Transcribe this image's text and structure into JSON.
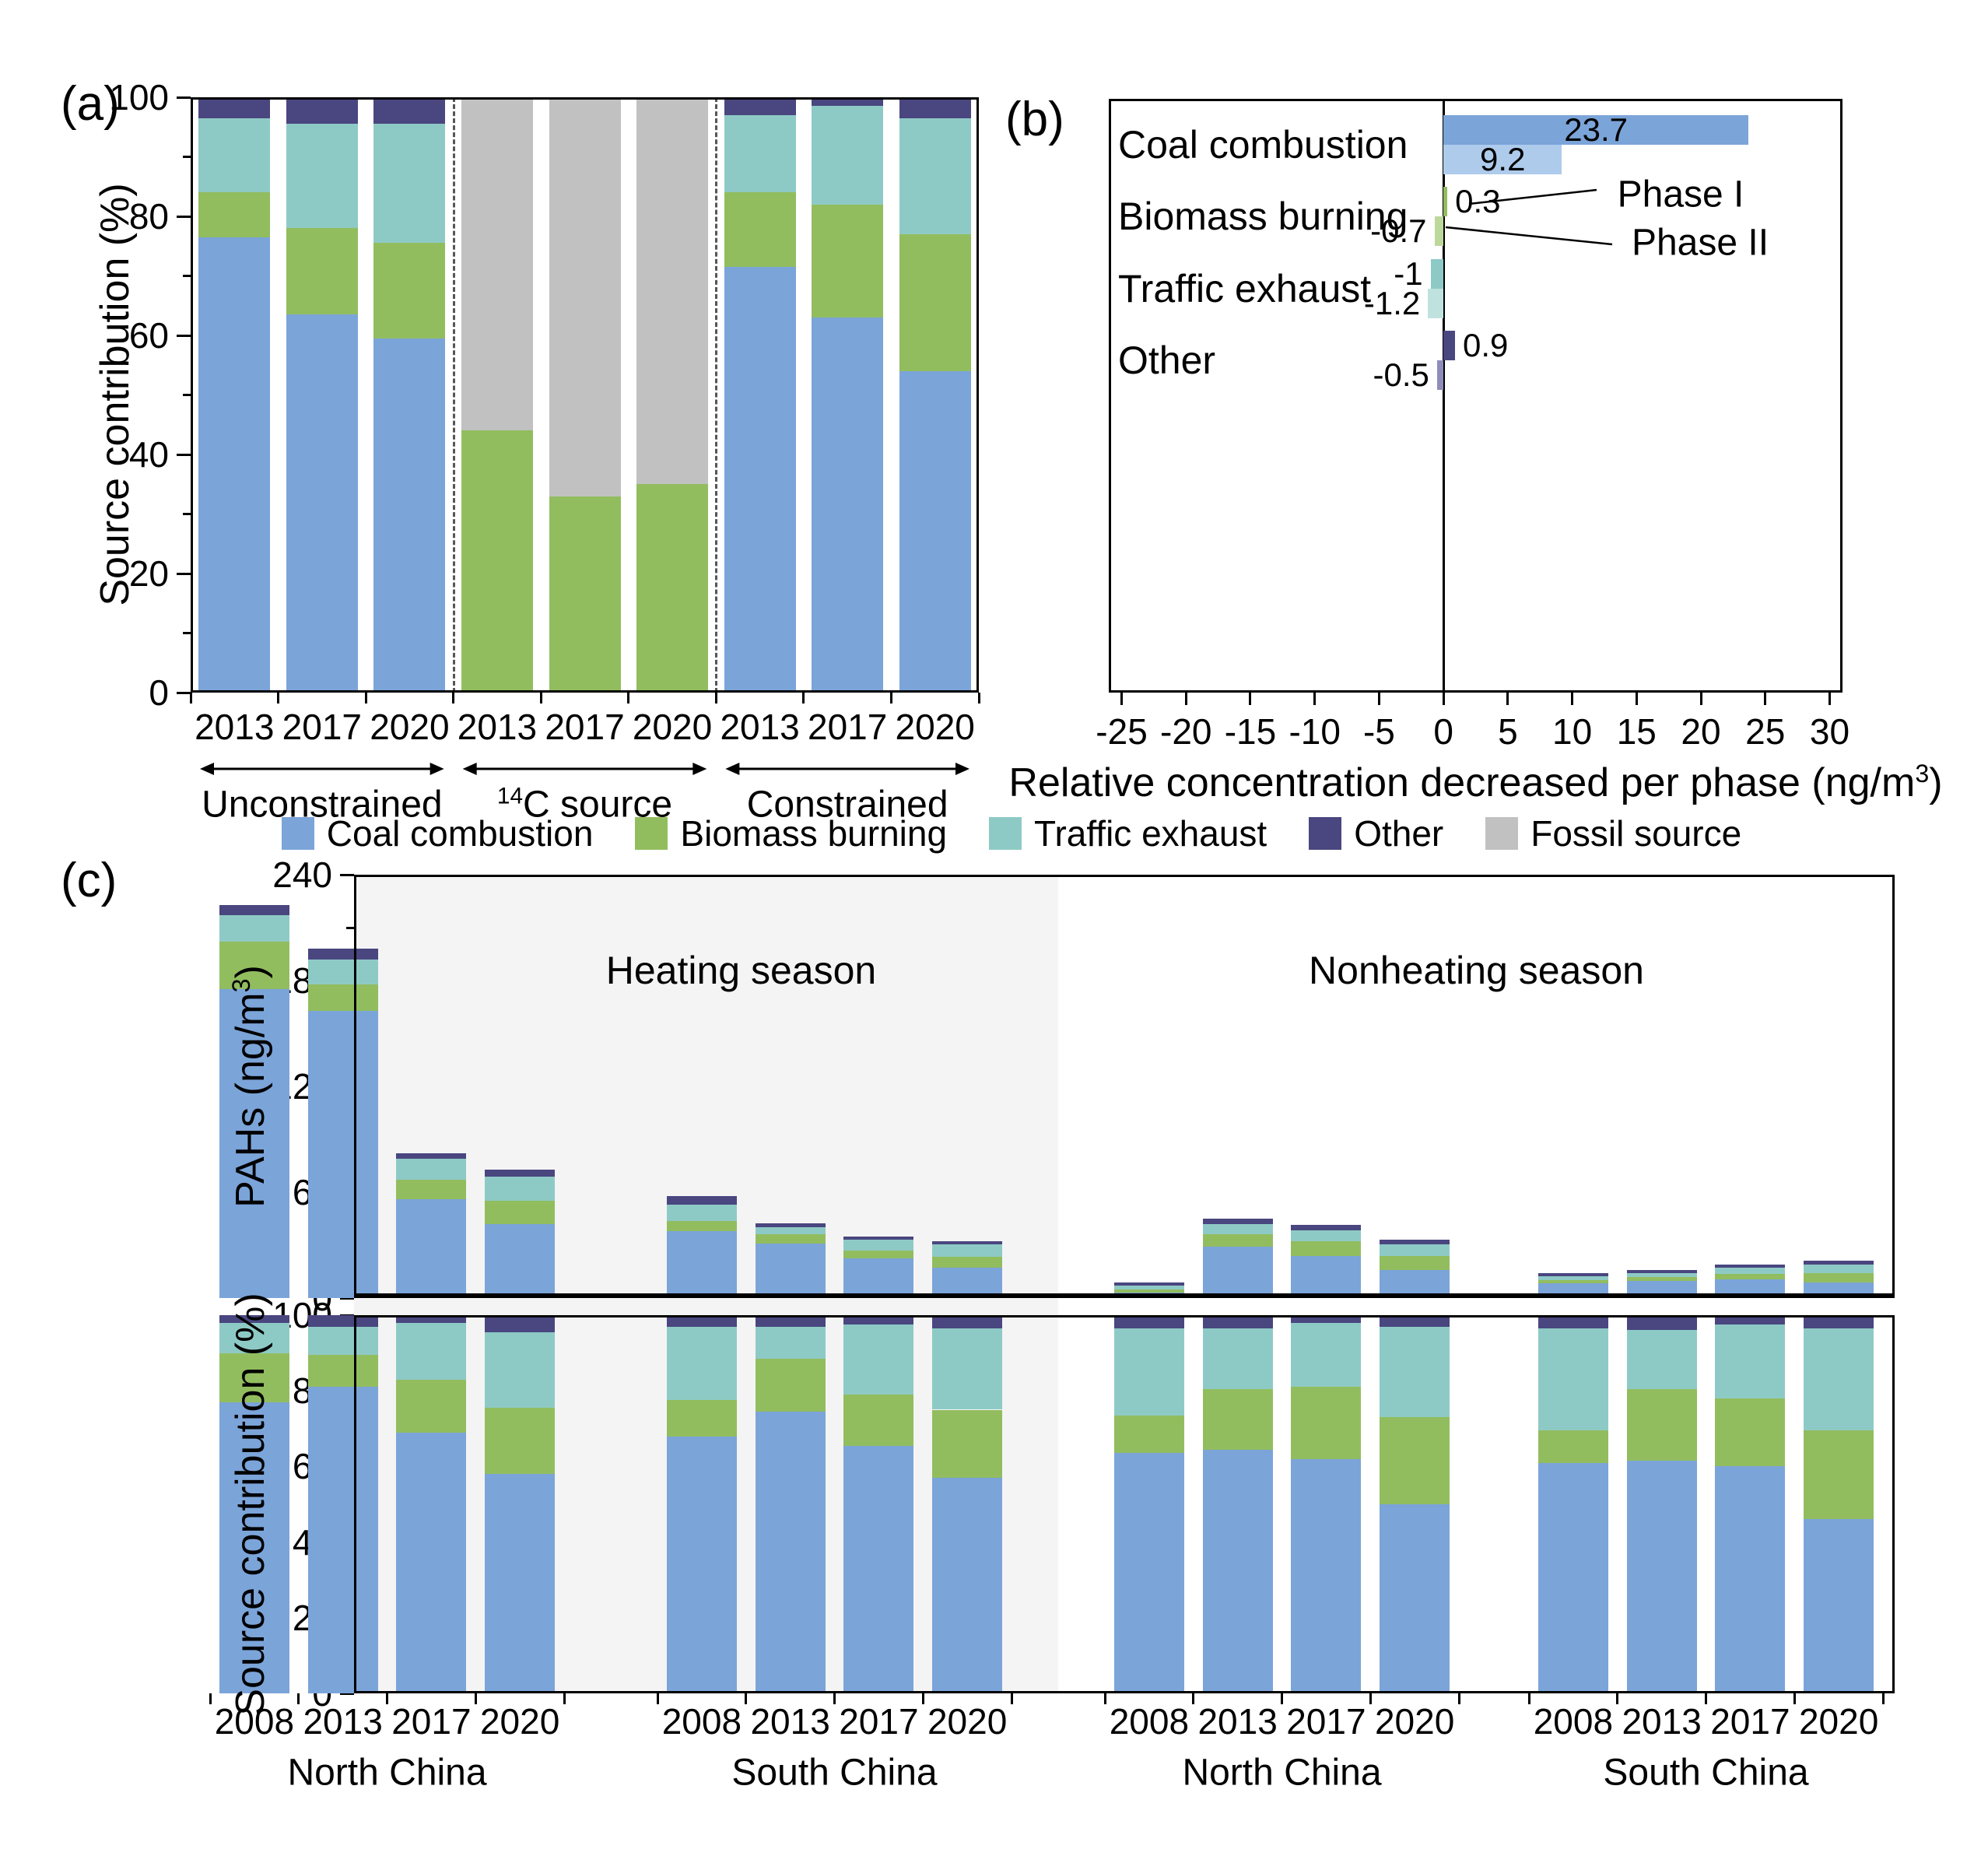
{
  "colors": {
    "coal": "#7BA4D9",
    "biomass": "#92BD5F",
    "traffic": "#8ECAC5",
    "other": "#494680",
    "fossil": "#C1C1C1",
    "coal_light": "#AECBEC",
    "biomass_light": "#BCD89B",
    "traffic_light": "#BFE2DF",
    "other_light": "#8F8CBB",
    "heating_shade": "#F4F4F4",
    "axis": "#000000"
  },
  "legend": {
    "items": [
      {
        "label": "Coal combustion",
        "color_key": "coal"
      },
      {
        "label": "Biomass burning",
        "color_key": "biomass"
      },
      {
        "label": "Traffic exhaust",
        "color_key": "traffic"
      },
      {
        "label": "Other",
        "color_key": "other"
      },
      {
        "label": "Fossil source",
        "color_key": "fossil"
      }
    ]
  },
  "chart_data": [
    {
      "id": "panel_a",
      "type": "bar",
      "stacked": true,
      "panel_label": "(a)",
      "ylabel": "Source contribution (%)",
      "ylim": [
        0,
        100
      ],
      "yticks": [
        0,
        20,
        40,
        60,
        80,
        100
      ],
      "series_keys": [
        "coal",
        "biomass",
        "traffic",
        "other",
        "fossil"
      ],
      "groups": [
        {
          "label_sup": "",
          "label": "Unconstrained",
          "categories": [
            "2013",
            "2017",
            "2020"
          ],
          "values": [
            {
              "coal": 76.5,
              "biomass": 7.5,
              "traffic": 12.5,
              "other": 3.5
            },
            {
              "coal": 63.5,
              "biomass": 14.5,
              "traffic": 17.5,
              "other": 4.5
            },
            {
              "coal": 59.5,
              "biomass": 16,
              "traffic": 20,
              "other": 4.5
            }
          ]
        },
        {
          "label_sup": "14",
          "label": "C source",
          "categories": [
            "2013",
            "2017",
            "2020"
          ],
          "values": [
            {
              "biomass": 44,
              "fossil": 56
            },
            {
              "biomass": 33,
              "fossil": 67
            },
            {
              "biomass": 35,
              "fossil": 65
            }
          ]
        },
        {
          "label_sup": "",
          "label": "Constrained",
          "categories": [
            "2013",
            "2017",
            "2020"
          ],
          "values": [
            {
              "coal": 71.5,
              "biomass": 12.5,
              "traffic": 13,
              "other": 3
            },
            {
              "coal": 63,
              "biomass": 19,
              "traffic": 16.5,
              "other": 1.5
            },
            {
              "coal": 54,
              "biomass": 23,
              "traffic": 19.5,
              "other": 3.5
            }
          ]
        }
      ]
    },
    {
      "id": "panel_b",
      "type": "bar_horizontal",
      "panel_label": "(b)",
      "xlabel_parts": [
        "Relative concentration decreased per phase (ng/m",
        "3",
        ")"
      ],
      "xlim": [
        -26,
        31
      ],
      "xticks": [
        -25,
        -20,
        -15,
        -10,
        -5,
        0,
        5,
        10,
        15,
        20,
        25,
        30
      ],
      "categories": [
        "Coal combustion",
        "Biomass burning",
        "Traffic exhaust",
        "Other"
      ],
      "category_color_keys": [
        "coal",
        "biomass",
        "traffic",
        "other"
      ],
      "series": [
        {
          "name": "Phase I",
          "values": [
            23.7,
            0.3,
            -1,
            0.9
          ],
          "labels": [
            "23.7",
            "0.3",
            "-1",
            "0.9"
          ]
        },
        {
          "name": "Phase II",
          "values": [
            9.2,
            -0.7,
            -1.2,
            -0.5
          ],
          "labels": [
            "9.2",
            "-0.7",
            "-1.2",
            "-0.5"
          ]
        }
      ],
      "annotations": [
        {
          "text": "Phase I"
        },
        {
          "text": "Phase II"
        }
      ]
    },
    {
      "id": "panel_c_top",
      "type": "bar",
      "stacked": true,
      "panel_label": "(c)",
      "ylabel_parts": [
        "PAHs (ng/m",
        "3",
        ")"
      ],
      "ylim": [
        0,
        240
      ],
      "yticks": [
        0,
        60,
        120,
        180,
        240
      ],
      "season_labels": [
        "Heating season",
        "Nonheating season"
      ],
      "series_keys": [
        "coal",
        "biomass",
        "traffic",
        "other"
      ],
      "groups": [
        {
          "region": "North China",
          "season": "Heating season",
          "categories": [
            "2008",
            "2013",
            "2017",
            "2020"
          ],
          "values": [
            {
              "coal": 175,
              "biomass": 27,
              "traffic": 15,
              "other": 6
            },
            {
              "coal": 163,
              "biomass": 15,
              "traffic": 14,
              "other": 6
            },
            {
              "coal": 56,
              "biomass": 11,
              "traffic": 12,
              "other": 3
            },
            {
              "coal": 42,
              "biomass": 13,
              "traffic": 14,
              "other": 4
            }
          ]
        },
        {
          "region": "South China",
          "season": "Heating season",
          "categories": [
            "2008",
            "2013",
            "2017",
            "2020"
          ],
          "values": [
            {
              "coal": 38,
              "biomass": 5.5,
              "traffic": 9.5,
              "other": 5
            },
            {
              "coal": 31,
              "biomass": 5,
              "traffic": 4,
              "other": 2.5
            },
            {
              "coal": 22.5,
              "biomass": 4.5,
              "traffic": 6,
              "other": 2
            },
            {
              "coal": 17,
              "biomass": 6.5,
              "traffic": 7,
              "other": 1.5
            }
          ]
        },
        {
          "region": "North China",
          "season": "Nonheating season",
          "categories": [
            "2008",
            "2013",
            "2017",
            "2020"
          ],
          "values": [
            {
              "coal": 3,
              "biomass": 2,
              "traffic": 2,
              "other": 2
            },
            {
              "coal": 29,
              "biomass": 7,
              "traffic": 6,
              "other": 3
            },
            {
              "coal": 24,
              "biomass": 8,
              "traffic": 6.5,
              "other": 3
            },
            {
              "coal": 16,
              "biomass": 8,
              "traffic": 6.5,
              "other": 2.5
            }
          ]
        },
        {
          "region": "South China",
          "season": "Nonheating season",
          "categories": [
            "2008",
            "2013",
            "2017",
            "2020"
          ],
          "values": [
            {
              "coal": 8.5,
              "biomass": 1.5,
              "traffic": 2.5,
              "other": 1.5
            },
            {
              "coal": 9.5,
              "biomass": 2.5,
              "traffic": 2,
              "other": 2
            },
            {
              "coal": 10.5,
              "biomass": 3,
              "traffic": 3.5,
              "other": 2
            },
            {
              "coal": 9,
              "biomass": 5,
              "traffic": 5,
              "other": 2
            }
          ]
        }
      ]
    },
    {
      "id": "panel_c_bottom",
      "type": "bar",
      "stacked": true,
      "ylabel": "Source contribution (%)",
      "ylim": [
        0,
        100
      ],
      "yticks": [
        0,
        20,
        40,
        60,
        80,
        100
      ],
      "series_keys": [
        "coal",
        "biomass",
        "traffic",
        "other"
      ],
      "groups": [
        {
          "region": "North China",
          "season": "Heating season",
          "categories": [
            "2008",
            "2013",
            "2017",
            "2020"
          ],
          "values": [
            {
              "coal": 77,
              "biomass": 13,
              "traffic": 8,
              "other": 2
            },
            {
              "coal": 81,
              "biomass": 8.5,
              "traffic": 7.5,
              "other": 3
            },
            {
              "coal": 69,
              "biomass": 14,
              "traffic": 15,
              "other": 2
            },
            {
              "coal": 58,
              "biomass": 17.5,
              "traffic": 20,
              "other": 4.5
            }
          ]
        },
        {
          "region": "South China",
          "season": "Heating season",
          "categories": [
            "2008",
            "2013",
            "2017",
            "2020"
          ],
          "values": [
            {
              "coal": 68,
              "biomass": 9.5,
              "traffic": 19.5,
              "other": 3
            },
            {
              "coal": 74.5,
              "biomass": 14,
              "traffic": 8.5,
              "other": 3
            },
            {
              "coal": 65.5,
              "biomass": 13.5,
              "traffic": 18.5,
              "other": 2.5
            },
            {
              "coal": 57,
              "biomass": 18,
              "traffic": 21.5,
              "other": 3.5
            }
          ]
        },
        {
          "region": "North China",
          "season": "Nonheating season",
          "categories": [
            "2008",
            "2013",
            "2017",
            "2020"
          ],
          "values": [
            {
              "coal": 63.5,
              "biomass": 10,
              "traffic": 23,
              "other": 3.5
            },
            {
              "coal": 64.5,
              "biomass": 16,
              "traffic": 16,
              "other": 3.5
            },
            {
              "coal": 62,
              "biomass": 19,
              "traffic": 17,
              "other": 2
            },
            {
              "coal": 50,
              "biomass": 23,
              "traffic": 24,
              "other": 3
            }
          ]
        },
        {
          "region": "South China",
          "season": "Nonheating season",
          "categories": [
            "2008",
            "2013",
            "2017",
            "2020"
          ],
          "values": [
            {
              "coal": 61,
              "biomass": 8.5,
              "traffic": 27,
              "other": 3.5
            },
            {
              "coal": 61.5,
              "biomass": 19,
              "traffic": 15.5,
              "other": 4
            },
            {
              "coal": 60,
              "biomass": 18,
              "traffic": 19.5,
              "other": 2.5
            },
            {
              "coal": 46,
              "biomass": 23.5,
              "traffic": 27,
              "other": 3.5
            }
          ]
        }
      ]
    }
  ]
}
